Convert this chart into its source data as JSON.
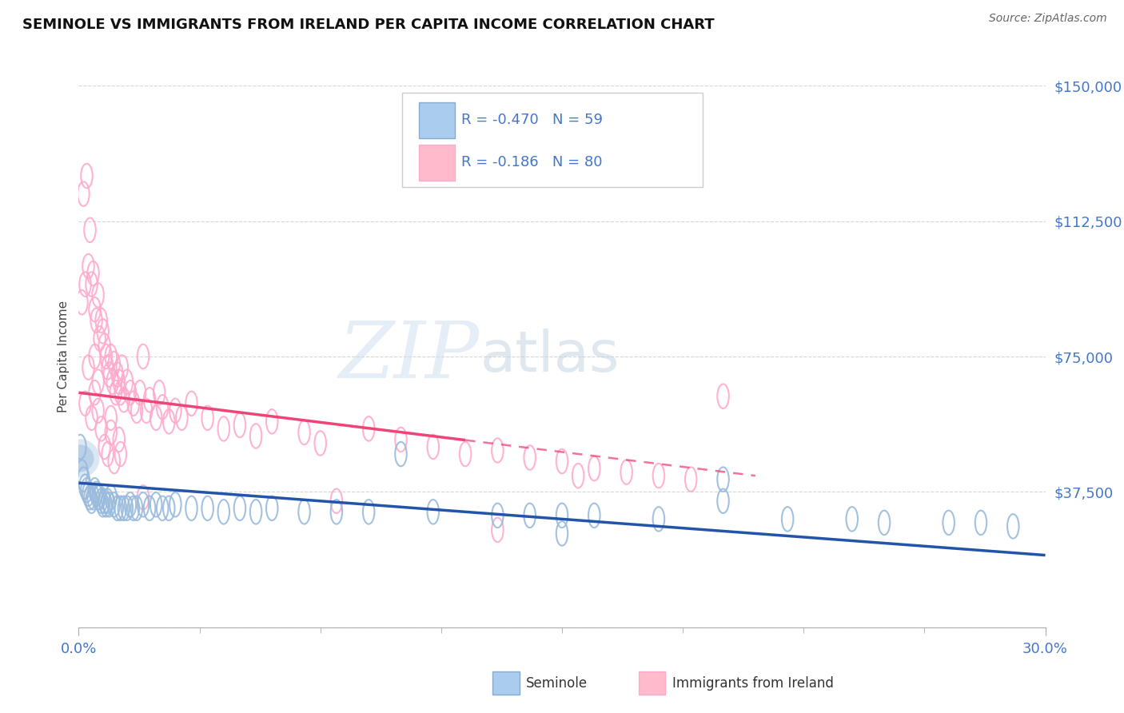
{
  "title": "SEMINOLE VS IMMIGRANTS FROM IRELAND PER CAPITA INCOME CORRELATION CHART",
  "source": "Source: ZipAtlas.com",
  "ylabel": "Per Capita Income",
  "ytick_vals": [
    0,
    37500,
    75000,
    112500,
    150000
  ],
  "ytick_labels": [
    "",
    "$37,500",
    "$75,000",
    "$112,500",
    "$150,000"
  ],
  "xmin": 0.0,
  "xmax": 30.0,
  "ymin": 0,
  "ymax": 150000,
  "blue_R": -0.47,
  "blue_N": 59,
  "pink_R": -0.186,
  "pink_N": 80,
  "blue_label": "Seminole",
  "pink_label": "Immigrants from Ireland",
  "blue_marker_color": "#99BBDD",
  "pink_marker_color": "#FFAACC",
  "blue_line_color": "#2255AA",
  "pink_line_color": "#EE4477",
  "title_color": "#111111",
  "axis_tick_color": "#4477CC",
  "legend_text_color": "#4477CC",
  "source_color": "#666666",
  "bg_color": "#FFFFFF",
  "grid_color": "#BBBBBB",
  "blue_x": [
    0.05,
    0.1,
    0.15,
    0.2,
    0.25,
    0.3,
    0.35,
    0.4,
    0.45,
    0.5,
    0.55,
    0.6,
    0.65,
    0.7,
    0.75,
    0.8,
    0.85,
    0.9,
    0.95,
    1.0,
    1.1,
    1.2,
    1.3,
    1.4,
    1.5,
    1.6,
    1.7,
    1.8,
    2.0,
    2.2,
    2.4,
    2.6,
    2.8,
    3.0,
    3.5,
    4.0,
    4.5,
    5.0,
    5.5,
    6.0,
    7.0,
    8.0,
    9.0,
    10.0,
    11.0,
    13.0,
    14.0,
    15.0,
    16.0,
    18.0,
    20.0,
    22.0,
    24.0,
    25.0,
    27.0,
    28.0,
    29.0,
    15.0,
    20.0
  ],
  "blue_y": [
    50000,
    43000,
    41000,
    39000,
    38000,
    37000,
    36000,
    35000,
    36000,
    38000,
    37000,
    36000,
    36000,
    35000,
    34000,
    35000,
    34000,
    35000,
    34000,
    36000,
    34000,
    33000,
    33000,
    33000,
    33000,
    34000,
    33000,
    33000,
    34000,
    33000,
    34000,
    33000,
    33000,
    34000,
    33000,
    33000,
    32000,
    33000,
    32000,
    33000,
    32000,
    32000,
    32000,
    48000,
    32000,
    31000,
    31000,
    26000,
    31000,
    30000,
    41000,
    30000,
    30000,
    29000,
    29000,
    29000,
    28000,
    31000,
    35000
  ],
  "pink_x": [
    0.1,
    0.15,
    0.2,
    0.25,
    0.3,
    0.35,
    0.4,
    0.45,
    0.5,
    0.5,
    0.55,
    0.6,
    0.6,
    0.65,
    0.7,
    0.75,
    0.8,
    0.85,
    0.9,
    0.95,
    1.0,
    1.0,
    1.05,
    1.1,
    1.15,
    1.2,
    1.25,
    1.25,
    1.3,
    1.3,
    1.35,
    1.4,
    1.5,
    1.6,
    1.7,
    1.8,
    1.9,
    2.0,
    2.0,
    2.1,
    2.2,
    2.4,
    2.5,
    2.6,
    2.8,
    3.0,
    3.2,
    3.5,
    4.0,
    4.5,
    5.0,
    5.5,
    6.0,
    7.0,
    7.5,
    8.0,
    9.0,
    10.0,
    11.0,
    12.0,
    13.0,
    13.0,
    14.0,
    15.0,
    15.5,
    16.0,
    17.0,
    18.0,
    19.0,
    20.0,
    0.2,
    0.3,
    0.4,
    0.5,
    0.6,
    0.7,
    0.8,
    0.9,
    1.0,
    1.1
  ],
  "pink_y": [
    90000,
    120000,
    95000,
    125000,
    100000,
    110000,
    95000,
    98000,
    88000,
    75000,
    85000,
    92000,
    68000,
    80000,
    85000,
    82000,
    78000,
    75000,
    72000,
    70000,
    75000,
    58000,
    68000,
    73000,
    65000,
    70000,
    68000,
    52000,
    65000,
    48000,
    72000,
    63000,
    68000,
    65000,
    62000,
    60000,
    65000,
    75000,
    36000,
    60000,
    63000,
    58000,
    65000,
    61000,
    57000,
    60000,
    58000,
    62000,
    58000,
    55000,
    56000,
    53000,
    57000,
    54000,
    51000,
    35000,
    55000,
    52000,
    50000,
    48000,
    49000,
    27000,
    47000,
    46000,
    42000,
    44000,
    43000,
    42000,
    41000,
    64000,
    62000,
    72000,
    58000,
    65000,
    60000,
    55000,
    50000,
    48000,
    54000,
    46000
  ]
}
